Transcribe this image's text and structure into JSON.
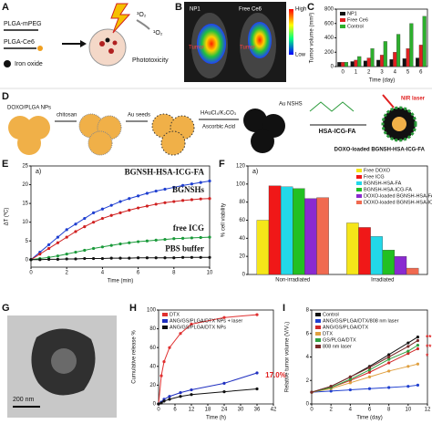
{
  "panel_a": {
    "label": "A",
    "mpeg": "PLGA-mPEG",
    "ce6": "PLGA-Ce6",
    "iron": "Iron oxide",
    "triplet": "³O₂",
    "singlet": "¹O₂",
    "effect": "Phototoxicity"
  },
  "panel_b": {
    "label": "B",
    "left": "NP1",
    "right": "Free Ce6",
    "tumor": "Tumor",
    "high": "High",
    "low": "Low"
  },
  "panel_d": {
    "label": "D",
    "np": "DOXO/PLGA NPs",
    "chitosan": "chitosan",
    "seeds": "Au seeds",
    "reagent": "HAuCl₄/K₂CO₃",
    "reductant": "Ascorbic Acid",
    "shells": "Au NSHS",
    "ligand": "HSA-ICG-FA",
    "laser": "NIR laser",
    "product": "DOXO-loaded BGNSH-HSA-ICG-FA"
  },
  "panel_g": {
    "label": "G",
    "scale": "200 nm"
  },
  "chart_data": [
    {
      "type": "bar",
      "panel": "C",
      "xlabel": "Time (day)",
      "ylabel": "Tumor volume (mm³)",
      "categories": [
        "0",
        "1",
        "2",
        "3",
        "4",
        "5",
        "6"
      ],
      "ylim": [
        0,
        800
      ],
      "yticks": [
        0,
        200,
        400,
        600,
        800
      ],
      "legend": "upper left",
      "series": [
        {
          "name": "NP1",
          "color": "#111111",
          "values": [
            60,
            70,
            80,
            90,
            100,
            110,
            120
          ]
        },
        {
          "name": "Free Ce6",
          "color": "#e02020",
          "values": [
            60,
            90,
            120,
            160,
            200,
            250,
            300
          ]
        },
        {
          "name": "Control",
          "color": "#2db02d",
          "values": [
            60,
            140,
            250,
            350,
            450,
            600,
            700
          ]
        }
      ]
    },
    {
      "type": "line",
      "panel": "E",
      "subpanel": "a)",
      "xlabel": "Time (min)",
      "ylabel": "ΔT (ºC)",
      "legend": "line-labels",
      "x": [
        0,
        0.5,
        1,
        1.5,
        2,
        2.5,
        3,
        3.5,
        4,
        4.5,
        5,
        5.5,
        6,
        6.5,
        7,
        7.5,
        8,
        8.5,
        9,
        9.5,
        10
      ],
      "xlim": [
        0,
        10
      ],
      "xticks": [
        0,
        2,
        4,
        6,
        8,
        10
      ],
      "ylim": [
        -2,
        25
      ],
      "yticks": [
        0,
        5,
        10,
        15,
        20,
        25
      ],
      "series": [
        {
          "name": "BGNSH-HSA-ICG-FA",
          "color": "#1f3fd0",
          "values": [
            0,
            2,
            4,
            6,
            8,
            9.5,
            11,
            12.5,
            13.5,
            14.5,
            15.5,
            16.3,
            17,
            17.7,
            18.3,
            18.8,
            19.3,
            19.8,
            20.2,
            20.6,
            21
          ]
        },
        {
          "name": "BGNSHs",
          "color": "#d02020",
          "values": [
            0,
            1.5,
            3,
            4.5,
            6,
            7.5,
            8.8,
            10,
            11,
            11.8,
            12.5,
            13.2,
            13.8,
            14.3,
            14.8,
            15.2,
            15.5,
            15.8,
            16,
            16.2,
            16.3
          ]
        },
        {
          "name": "free ICG",
          "color": "#1a9a3a",
          "values": [
            0,
            0.3,
            0.6,
            1,
            1.5,
            2,
            2.5,
            3,
            3.4,
            3.8,
            4.2,
            4.5,
            4.8,
            5,
            5.2,
            5.4,
            5.6,
            5.7,
            5.8,
            5.9,
            6
          ]
        },
        {
          "name": "PBS buffer",
          "color": "#111111",
          "values": [
            0,
            0,
            0.1,
            0.1,
            0.2,
            0.2,
            0.3,
            0.3,
            0.3,
            0.4,
            0.4,
            0.4,
            0.5,
            0.5,
            0.5,
            0.5,
            0.5,
            0.6,
            0.6,
            0.6,
            0.6
          ]
        }
      ]
    },
    {
      "type": "bar",
      "panel": "F",
      "subpanel": "a)",
      "ylabel": "% cell viability",
      "categories": [
        "Non-irradiated",
        "Irradiated"
      ],
      "ylim": [
        0,
        120
      ],
      "yticks": [
        0,
        20,
        40,
        60,
        80,
        100,
        120
      ],
      "legend": "upper right",
      "series": [
        {
          "name": "Free DOXO",
          "color": "#f5e619",
          "values": [
            60,
            57
          ]
        },
        {
          "name": "Free ICG",
          "color": "#f01818",
          "values": [
            98,
            52
          ]
        },
        {
          "name": "BGNSH-HSA-FA",
          "color": "#22d8e8",
          "values": [
            97,
            42
          ]
        },
        {
          "name": "BGNSH-HSA-ICG-FA",
          "color": "#22c022",
          "values": [
            95,
            27
          ]
        },
        {
          "name": "DOXO-loaded BGNSH-HSA-FA",
          "color": "#8a2ad0",
          "values": [
            84,
            20
          ]
        },
        {
          "name": "DOXO-loaded BGNSH-HSA-ICG-FA",
          "color": "#f06a50",
          "values": [
            85,
            7
          ]
        }
      ]
    },
    {
      "type": "line",
      "panel": "H",
      "xlabel": "Time (h)",
      "ylabel": "Cumulative release %",
      "legend": "upper left",
      "x": [
        0,
        1,
        2,
        4,
        8,
        12,
        24,
        36
      ],
      "xlim": [
        0,
        42
      ],
      "xticks": [
        0,
        6,
        12,
        18,
        24,
        30,
        36,
        42
      ],
      "ylim": [
        0,
        100
      ],
      "yticks": [
        0,
        20,
        40,
        60,
        80,
        100
      ],
      "annotations": [
        "17.0%"
      ],
      "series": [
        {
          "name": "DTX",
          "color": "#e03030",
          "values": [
            0,
            30,
            45,
            60,
            75,
            85,
            92,
            95
          ]
        },
        {
          "name": "ANG/GS/PLGA/DTX NPs + laser",
          "color": "#2030c0",
          "values": [
            0,
            2,
            5,
            8,
            12,
            15,
            22,
            33
          ]
        },
        {
          "name": "ANG/GS/PLGA/DTX NPs",
          "color": "#111111",
          "values": [
            0,
            1,
            3,
            5,
            8,
            10,
            13,
            16
          ]
        }
      ]
    },
    {
      "type": "line",
      "panel": "I",
      "xlabel": "Time (day)",
      "ylabel": "Relative tumor volume (V/V₀)",
      "legend": "upper left",
      "x": [
        0,
        2,
        4,
        6,
        8,
        10,
        11
      ],
      "xlim": [
        0,
        12
      ],
      "xticks": [
        0,
        2,
        4,
        6,
        8,
        10,
        12
      ],
      "ylim": [
        0,
        8
      ],
      "yticks": [
        0,
        2,
        4,
        6,
        8
      ],
      "annotations": [
        "**",
        "**",
        "*"
      ],
      "series": [
        {
          "name": "Control",
          "color": "#111111",
          "values": [
            1,
            1.5,
            2.3,
            3.2,
            4.2,
            5.2,
            5.7
          ]
        },
        {
          "name": "ANG/GS/PLGA/DTX/808 nm laser",
          "color": "#2040d0",
          "values": [
            1,
            1.1,
            1.2,
            1.3,
            1.4,
            1.5,
            1.6
          ]
        },
        {
          "name": "ANG/GS/PLGA/DTX",
          "color": "#d02828",
          "values": [
            1,
            1.4,
            2,
            2.7,
            3.5,
            4.3,
            4.7
          ]
        },
        {
          "name": "DTX",
          "color": "#e0a040",
          "values": [
            1,
            1.3,
            1.8,
            2.3,
            2.8,
            3.2,
            3.4
          ]
        },
        {
          "name": "GS/PLGA/DTX",
          "color": "#30a040",
          "values": [
            1,
            1.4,
            2.1,
            2.9,
            3.8,
            4.5,
            5
          ]
        },
        {
          "name": "808 nm laser",
          "color": "#7a2a2a",
          "values": [
            1,
            1.5,
            2.3,
            3.1,
            4,
            4.9,
            5.4
          ]
        }
      ]
    }
  ]
}
